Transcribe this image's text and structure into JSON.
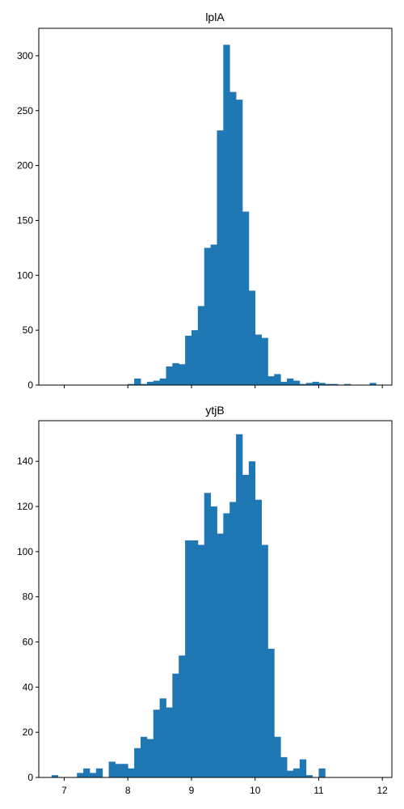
{
  "chart_data": [
    {
      "type": "bar",
      "title": "lplA",
      "xlabel": "",
      "ylabel": "",
      "xlim": [
        6.6,
        12.15
      ],
      "ylim": [
        0,
        325
      ],
      "xticks": [
        7,
        8,
        9,
        10,
        11,
        12
      ],
      "xtick_labels_shown": false,
      "yticks": [
        0,
        50,
        100,
        150,
        200,
        250,
        300
      ],
      "ytick_labels": [
        "0",
        "50",
        "100",
        "150",
        "200",
        "250",
        "300"
      ],
      "bin_start": 6.8,
      "bin_width": 0.1,
      "values": [
        0,
        0,
        0,
        0,
        0,
        0,
        0,
        0,
        0,
        0,
        0,
        0,
        1,
        6,
        1,
        3,
        4,
        6,
        17,
        20,
        19,
        45,
        50,
        72,
        125,
        128,
        232,
        310,
        267,
        260,
        158,
        86,
        46,
        43,
        8,
        10,
        3,
        6,
        4,
        1,
        2,
        3,
        2,
        1,
        1,
        0,
        1,
        0,
        0,
        0,
        2,
        0
      ],
      "color": "#1f77b4"
    },
    {
      "type": "bar",
      "title": "ytjB",
      "xlabel": "",
      "ylabel": "",
      "xlim": [
        6.6,
        12.15
      ],
      "ylim": [
        0,
        158
      ],
      "xticks": [
        7,
        8,
        9,
        10,
        11,
        12
      ],
      "xtick_labels": [
        "7",
        "8",
        "9",
        "10",
        "11",
        "12"
      ],
      "yticks": [
        0,
        20,
        40,
        60,
        80,
        100,
        120,
        140
      ],
      "ytick_labels": [
        "0",
        "20",
        "40",
        "60",
        "80",
        "100",
        "120",
        "140"
      ],
      "bin_start": 6.8,
      "bin_width": 0.1,
      "values": [
        1,
        0,
        0,
        0,
        2,
        4,
        2,
        4,
        0,
        7,
        6,
        6,
        4,
        13,
        18,
        17,
        30,
        35,
        31,
        46,
        54,
        105,
        105,
        103,
        126,
        120,
        108,
        117,
        122,
        152,
        134,
        140,
        123,
        103,
        57,
        18,
        9,
        3,
        4,
        8,
        1,
        0,
        4,
        0,
        0,
        0,
        0,
        0,
        0,
        0,
        0,
        0
      ],
      "color": "#1f77b4"
    }
  ]
}
